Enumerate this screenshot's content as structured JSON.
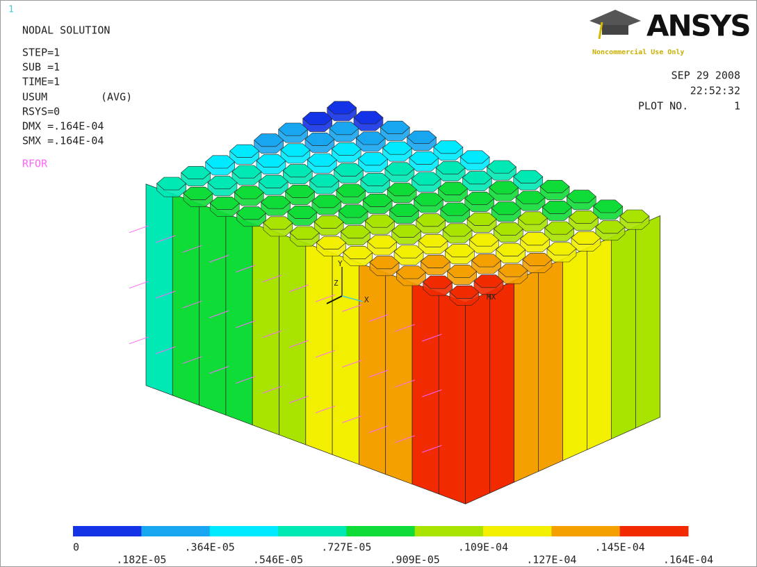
{
  "header": {
    "window_number": "1",
    "title": "NODAL SOLUTION",
    "info": [
      "STEP=1",
      "SUB =1",
      "TIME=1"
    ],
    "quantity": "USUM",
    "avg": "(AVG)",
    "rsys": "RSYS=0",
    "dmx": "DMX =.164E-04",
    "smx": "SMX =.164E-04",
    "rfor": "RFOR"
  },
  "logo": {
    "text": "ANSYS",
    "note": "Noncommercial Use Only"
  },
  "stamp": {
    "date": "SEP 29 2008",
    "time": "22:52:32",
    "plot_label": "PLOT NO.",
    "plot_number": "1"
  },
  "model": {
    "labels": [
      "Y",
      "Z",
      "X",
      "MX"
    ]
  },
  "legend": {
    "colors": [
      "#1432e6",
      "#18a6f0",
      "#00eaff",
      "#00e8b4",
      "#10dc38",
      "#a8e400",
      "#f2f000",
      "#f4a000",
      "#f22a00"
    ],
    "labels": [
      "0",
      ".182E-05",
      ".364E-05",
      ".546E-05",
      ".727E-05",
      ".909E-05",
      ".109E-04",
      ".127E-04",
      ".145E-04",
      ".164E-04"
    ]
  }
}
